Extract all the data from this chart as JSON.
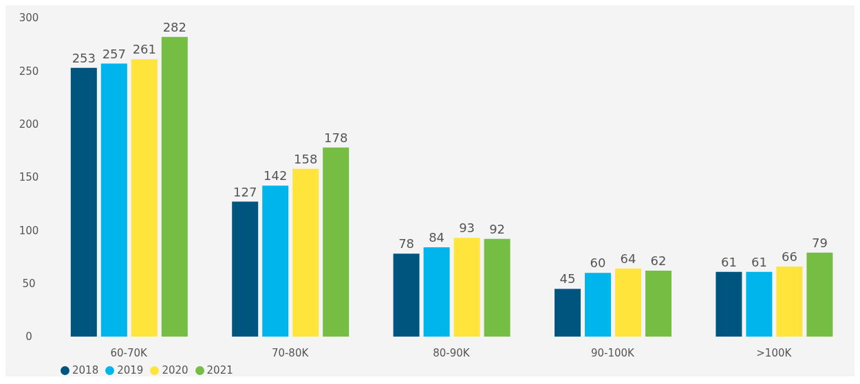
{
  "chart_data": {
    "type": "bar",
    "categories": [
      "60-70K",
      "70-80K",
      "80-90K",
      "90-100K",
      ">100K"
    ],
    "series": [
      {
        "name": "2018",
        "color": "#00557f",
        "values": [
          253,
          127,
          78,
          45,
          61
        ]
      },
      {
        "name": "2019",
        "color": "#00b5ec",
        "values": [
          257,
          142,
          84,
          60,
          61
        ]
      },
      {
        "name": "2020",
        "color": "#ffe53b",
        "values": [
          261,
          158,
          93,
          64,
          66
        ]
      },
      {
        "name": "2021",
        "color": "#76bd43",
        "values": [
          282,
          178,
          92,
          62,
          79
        ]
      }
    ],
    "ylim": [
      0,
      300
    ],
    "yticks": [
      0,
      50,
      100,
      150,
      200,
      250,
      300
    ],
    "grid": false,
    "legend": "bottom left",
    "data_labels": true,
    "marker": "circle"
  }
}
